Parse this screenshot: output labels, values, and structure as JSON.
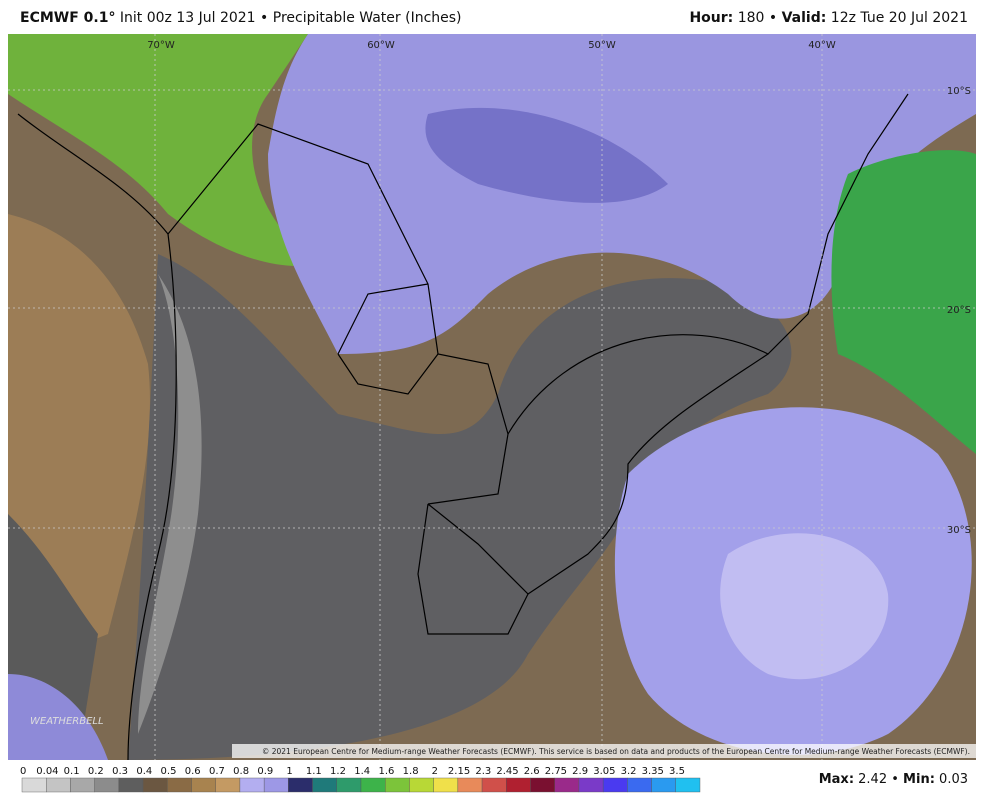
{
  "header": {
    "model": "ECMWF 0.1°",
    "description": "Init 00z 13 Jul 2021 • Precipitable Water (Inches)",
    "hour_label": "Hour:",
    "hour": "180 •",
    "valid_label": "Valid:",
    "valid": "12z Tue 20 Jul 2021"
  },
  "map": {
    "longitudes": [
      "70°W",
      "60°W",
      "50°W",
      "40°W"
    ],
    "latitudes": [
      "10°S",
      "20°S",
      "30°S"
    ],
    "credit": "© 2021 European Centre for Medium-range Weather Forecasts (ECMWF). This service is based on data and products of the European Centre for Medium-range Weather Forecasts (ECMWF).",
    "logo": "WEATHERBELL"
  },
  "colorbar": {
    "labels": [
      "0",
      "0.04",
      "0.1",
      "0.2",
      "0.3",
      "0.4",
      "0.5",
      "0.6",
      "0.7",
      "0.8",
      "0.9",
      "1",
      "1.1",
      "1.2",
      "1.4",
      "1.6",
      "1.8",
      "2",
      "2.15",
      "2.3",
      "2.45",
      "2.6",
      "2.75",
      "2.9",
      "3.05",
      "3.2",
      "3.35",
      "3.5"
    ],
    "colors": [
      "#d9d9d9",
      "#c4c4c4",
      "#a8a8a8",
      "#8c8c8c",
      "#5e5e5e",
      "#6b5741",
      "#8a6b45",
      "#a8834f",
      "#c49a63",
      "#b3aef0",
      "#9d98e6",
      "#2b2d6b",
      "#1f7a7a",
      "#2e9b6b",
      "#3db34a",
      "#7cc43a",
      "#b8d836",
      "#f0e04a",
      "#e88a5a",
      "#d0504a",
      "#b02030",
      "#7a1030",
      "#9a2a8a",
      "#7a3ac8",
      "#4a3af0",
      "#3a6af0",
      "#2a9af0",
      "#20c0f0"
    ]
  },
  "stats": {
    "max_label": "Max:",
    "max": "2.42 •",
    "min_label": "Min:",
    "min": "0.03"
  }
}
